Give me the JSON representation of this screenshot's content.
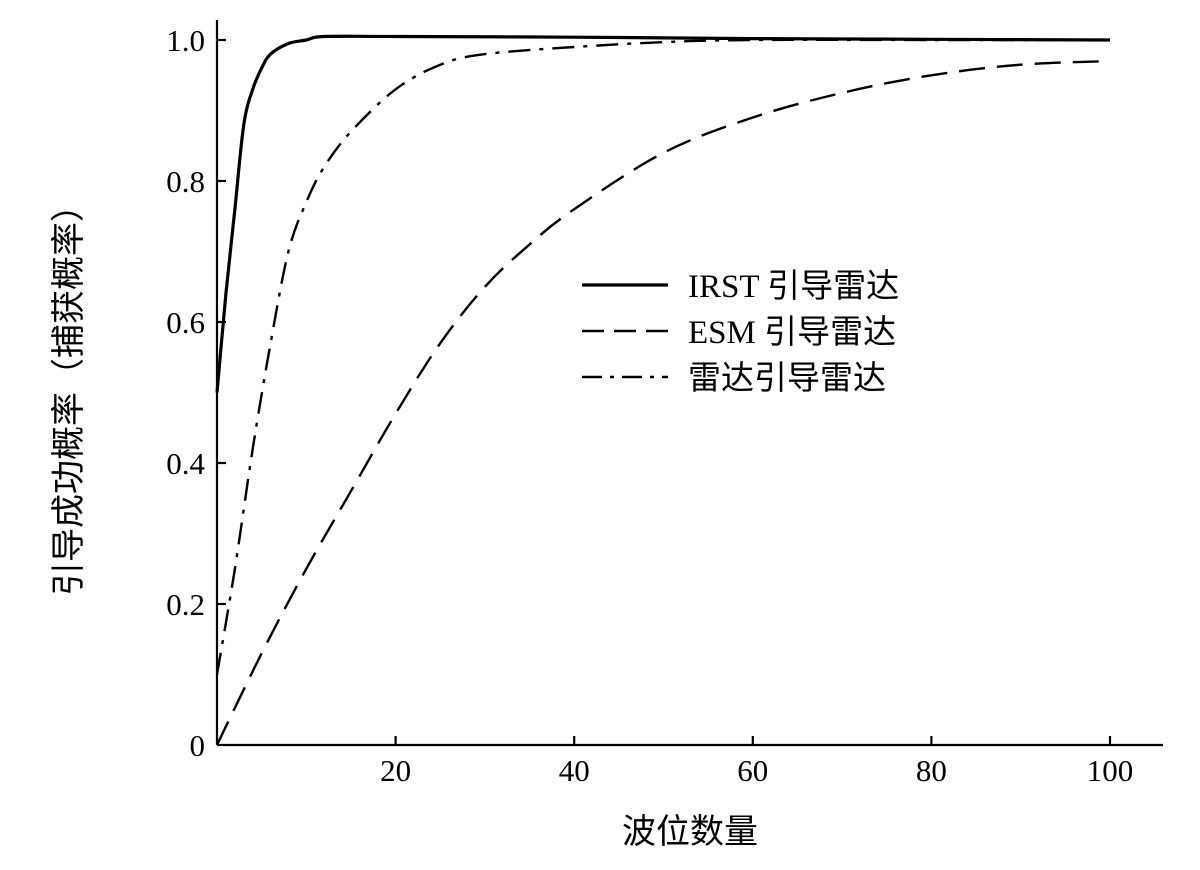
{
  "chart_data": {
    "type": "line",
    "xlabel": "波位数量",
    "ylabel": "引导成功概率（捕获概率）",
    "xlim": [
      0,
      105
    ],
    "ylim": [
      0,
      1.0
    ],
    "x_ticks": [
      {
        "value": 0,
        "label": ""
      },
      {
        "value": 20,
        "label": "20"
      },
      {
        "value": 40,
        "label": "40"
      },
      {
        "value": 60,
        "label": "60"
      },
      {
        "value": 80,
        "label": "80"
      },
      {
        "value": 100,
        "label": "100"
      }
    ],
    "y_ticks": [
      {
        "value": 0,
        "label": "0"
      },
      {
        "value": 0.2,
        "label": "0.2"
      },
      {
        "value": 0.4,
        "label": "0.4"
      },
      {
        "value": 0.6,
        "label": "0.6"
      },
      {
        "value": 0.8,
        "label": "0.8"
      },
      {
        "value": 1.0,
        "label": "1.0"
      }
    ],
    "grid": false,
    "legend_position": "center-right",
    "series": [
      {
        "name": "IRST 引导雷达",
        "line_style": "solid",
        "color": "#000000",
        "x": [
          0,
          1,
          2,
          3,
          4,
          5,
          6,
          8,
          10,
          12,
          20,
          40,
          60,
          80,
          100
        ],
        "values": [
          0.5,
          0.64,
          0.76,
          0.88,
          0.93,
          0.96,
          0.98,
          0.995,
          1.0,
          1.005,
          1.005,
          1.004,
          1.002,
          1.001,
          1.0
        ]
      },
      {
        "name": "ESM 引导雷达",
        "line_style": "dashed",
        "color": "#000000",
        "x": [
          0,
          5,
          10,
          15,
          20,
          25,
          30,
          35,
          40,
          50,
          60,
          70,
          80,
          90,
          100
        ],
        "values": [
          0.0,
          0.13,
          0.25,
          0.36,
          0.47,
          0.57,
          0.65,
          0.71,
          0.76,
          0.84,
          0.89,
          0.925,
          0.95,
          0.965,
          0.97
        ]
      },
      {
        "name": "雷达引导雷达",
        "line_style": "dash-dot",
        "color": "#000000",
        "x": [
          0,
          2,
          4,
          6,
          8,
          10,
          12,
          15,
          20,
          25,
          30,
          40,
          50,
          60,
          80,
          100
        ],
        "values": [
          0.1,
          0.25,
          0.42,
          0.57,
          0.7,
          0.77,
          0.82,
          0.87,
          0.93,
          0.965,
          0.98,
          0.99,
          0.997,
          1.0,
          1.0,
          1.0
        ]
      }
    ]
  }
}
